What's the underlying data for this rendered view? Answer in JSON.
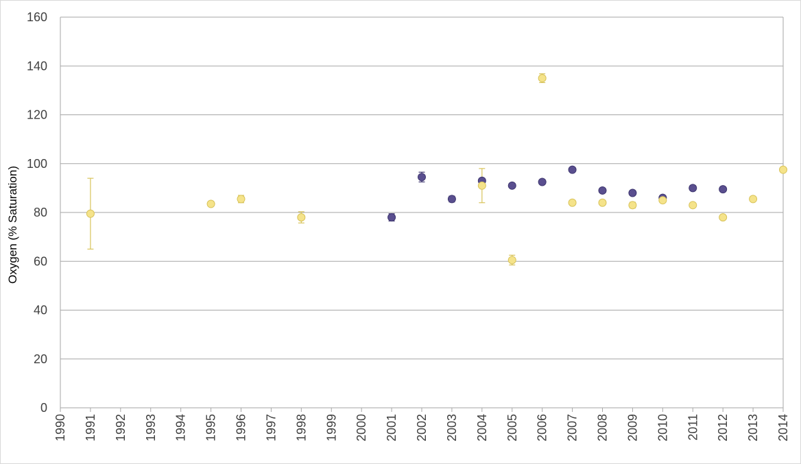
{
  "chart_data": {
    "type": "scatter",
    "title": "",
    "xlabel": "",
    "ylabel": "Oxygen (% Saturation)",
    "xlim": [
      1990,
      2014
    ],
    "ylim": [
      0,
      160
    ],
    "x_ticks": [
      1990,
      1991,
      1992,
      1993,
      1994,
      1995,
      1996,
      1997,
      1998,
      1999,
      2000,
      2001,
      2002,
      2003,
      2004,
      2005,
      2006,
      2007,
      2008,
      2009,
      2010,
      2011,
      2012,
      2013,
      2014
    ],
    "y_ticks": [
      0,
      20,
      40,
      60,
      80,
      100,
      120,
      140,
      160
    ],
    "grid": "horizontal",
    "legend": "none",
    "series": [
      {
        "color": "#5a4f8f",
        "edge_color": "#3f3770",
        "points": [
          {
            "x": 2001,
            "y": 78,
            "err": 1.5
          },
          {
            "x": 2002,
            "y": 94.5,
            "err": 2
          },
          {
            "x": 2003,
            "y": 85.5,
            "err": 1.2
          },
          {
            "x": 2004,
            "y": 93,
            "err": 1
          },
          {
            "x": 2005,
            "y": 91,
            "err": 0.5
          },
          {
            "x": 2006,
            "y": 92.5,
            "err": 0.5
          },
          {
            "x": 2007,
            "y": 97.5,
            "err": 0.5
          },
          {
            "x": 2008,
            "y": 89,
            "err": 0.5
          },
          {
            "x": 2009,
            "y": 88,
            "err": 0.5
          },
          {
            "x": 2010,
            "y": 86,
            "err": 0.5
          },
          {
            "x": 2011,
            "y": 90,
            "err": 1
          },
          {
            "x": 2012,
            "y": 89.5,
            "err": 1
          }
        ]
      },
      {
        "color": "#f5e38a",
        "edge_color": "#d8c35a",
        "points": [
          {
            "x": 1991,
            "y": 79.5,
            "err": 14.5
          },
          {
            "x": 1995,
            "y": 83.5,
            "err": 0.5
          },
          {
            "x": 1996,
            "y": 85.5,
            "err": 1.5
          },
          {
            "x": 1998,
            "y": 78,
            "err": 2.3
          },
          {
            "x": 2004,
            "y": 91,
            "err": 7
          },
          {
            "x": 2005,
            "y": 60.5,
            "err": 2
          },
          {
            "x": 2006,
            "y": 135,
            "err": 1.8
          },
          {
            "x": 2007,
            "y": 84,
            "err": 0.5
          },
          {
            "x": 2008,
            "y": 84,
            "err": 0.8
          },
          {
            "x": 2009,
            "y": 83,
            "err": 1.2
          },
          {
            "x": 2010,
            "y": 85,
            "err": 0.5
          },
          {
            "x": 2011,
            "y": 83,
            "err": 0.5
          },
          {
            "x": 2012,
            "y": 78,
            "err": 0.5
          },
          {
            "x": 2013,
            "y": 85.5,
            "err": 0.5
          },
          {
            "x": 2014,
            "y": 97.5,
            "err": 0.5
          }
        ]
      }
    ]
  }
}
